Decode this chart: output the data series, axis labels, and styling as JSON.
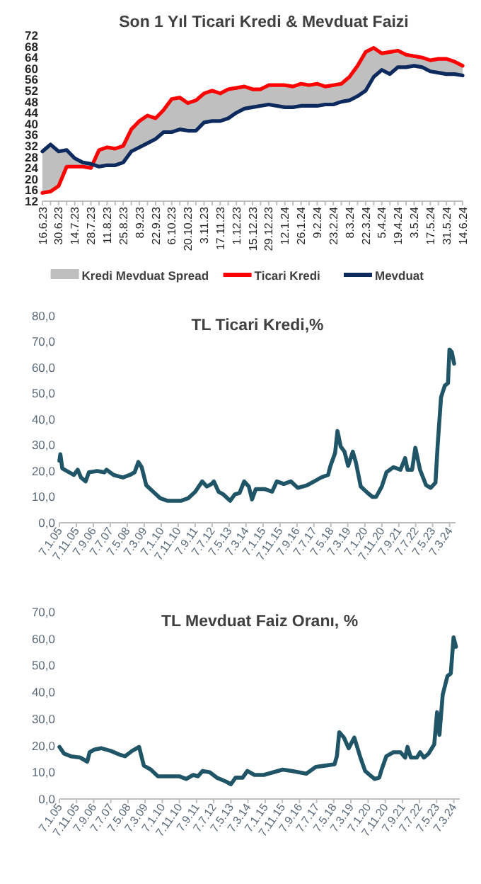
{
  "chart_data": [
    {
      "type": "line",
      "title": "Son 1 Yıl Ticari Kredi & Mevduat Faizi",
      "categories": [
        "16.6.23",
        null,
        "30.6.23",
        null,
        "14.7.23",
        null,
        "28.7.23",
        null,
        "11.8.23",
        null,
        "25.8.23",
        null,
        "8.9.23",
        null,
        "22.9.23",
        null,
        "6.10.23",
        null,
        "20.10.23",
        null,
        "3.11.23",
        null,
        "17.11.23",
        null,
        "1.12.23",
        null,
        "15.12.23",
        null,
        "29.12.23",
        null,
        "12.1.24",
        null,
        "26.1.24",
        null,
        "9.2.24",
        null,
        "23.2.24",
        null,
        "8.3.24",
        null,
        "22.3.24",
        null,
        "5.4.24",
        null,
        "19.4.24",
        null,
        "3.5.24",
        null,
        "17.5.24",
        null,
        "31.5.24",
        null,
        "14.6.24"
      ],
      "ylim": [
        12,
        72
      ],
      "yticks": [
        12,
        16,
        20,
        24,
        28,
        32,
        36,
        40,
        44,
        48,
        52,
        56,
        60,
        64,
        68,
        72
      ],
      "legend": "bottom",
      "series": [
        {
          "name": "Kredi Mevduat Spread",
          "type": "area",
          "color": "#bfbfbf",
          "values": [
            null,
            null,
            null,
            null,
            null,
            null,
            null,
            null,
            null,
            null,
            null,
            null,
            null,
            null,
            null,
            null,
            null,
            null,
            null,
            null,
            null,
            null,
            null,
            null,
            null,
            null,
            null,
            null,
            null,
            null,
            null,
            null,
            null,
            null,
            null,
            null,
            null,
            null,
            null,
            null,
            null,
            null,
            null,
            null,
            null,
            null,
            null,
            null,
            null,
            null,
            null,
            null,
            null
          ],
          "lower": [
            30,
            32.5,
            30,
            30.5,
            27.5,
            26,
            25.5,
            24.5,
            25,
            25,
            26,
            30,
            31.5,
            33,
            34.5,
            37,
            37,
            38,
            37.5,
            37.5,
            40.5,
            41,
            41,
            42,
            44,
            45.5,
            46,
            46.5,
            47,
            46.5,
            46,
            46,
            46.5,
            46.5,
            46.5,
            47,
            47,
            48,
            48.5,
            50,
            52,
            57,
            59.5,
            58,
            60.5,
            60.5,
            61,
            60.5,
            59,
            58.5,
            58,
            58,
            57.5
          ],
          "upper": [
            15,
            15.5,
            17.5,
            24.5,
            24.5,
            24.5,
            24,
            30.5,
            31.5,
            31,
            32,
            38,
            41,
            43,
            42,
            45,
            49,
            49.5,
            47.5,
            48.5,
            51,
            52,
            51,
            52.5,
            53,
            53.5,
            52.5,
            52.5,
            54,
            54,
            54,
            53.5,
            54.5,
            54,
            54.5,
            53.5,
            54,
            54.5,
            57,
            61,
            66,
            67.5,
            65.5,
            66,
            66.5,
            65,
            64.5,
            64,
            63,
            63.5,
            63.5,
            62.5,
            61
          ]
        },
        {
          "name": "Ticari Kredi",
          "color": "#ff0000",
          "values": [
            15,
            15.5,
            17.5,
            24.5,
            24.5,
            24.5,
            24,
            30.5,
            31.5,
            31,
            32,
            38,
            41,
            43,
            42,
            45,
            49,
            49.5,
            47.5,
            48.5,
            51,
            52,
            51,
            52.5,
            53,
            53.5,
            52.5,
            52.5,
            54,
            54,
            54,
            53.5,
            54.5,
            54,
            54.5,
            53.5,
            54,
            54.5,
            57,
            61,
            66,
            67.5,
            65.5,
            66,
            66.5,
            65,
            64.5,
            64,
            63,
            63.5,
            63.5,
            62.5,
            61
          ]
        },
        {
          "name": "Mevduat",
          "color": "#0d2a5e",
          "values": [
            30,
            32.5,
            30,
            30.5,
            27.5,
            26,
            25.5,
            24.5,
            25,
            25,
            26,
            30,
            31.5,
            33,
            34.5,
            37,
            37,
            38,
            37.5,
            37.5,
            40.5,
            41,
            41,
            42,
            44,
            45.5,
            46,
            46.5,
            47,
            46.5,
            46,
            46,
            46.5,
            46.5,
            46.5,
            47,
            47,
            48,
            48.5,
            50,
            52,
            57,
            59.5,
            58,
            60.5,
            60.5,
            61,
            60.5,
            59,
            58.5,
            58,
            58,
            57.5
          ]
        }
      ]
    },
    {
      "type": "line",
      "title": "TL Ticari Kredi,%",
      "xlim": [
        "2005-01-07",
        "2024-06-21"
      ],
      "xticks": [
        {
          "value": "2005-01-07",
          "label": "7.1.05"
        },
        {
          "value": "2005-11-07",
          "label": "7.11.05"
        },
        {
          "value": "2006-09-07",
          "label": "7.9.06"
        },
        {
          "value": "2007-07-07",
          "label": "7.7.07"
        },
        {
          "value": "2008-05-07",
          "label": "7.5.08"
        },
        {
          "value": "2009-03-07",
          "label": "7.3.09"
        },
        {
          "value": "2010-01-07",
          "label": "7.1.10"
        },
        {
          "value": "2010-11-07",
          "label": "7.11.10"
        },
        {
          "value": "2011-09-07",
          "label": "7.9.11"
        },
        {
          "value": "2012-07-07",
          "label": "7.7.12"
        },
        {
          "value": "2013-05-07",
          "label": "7.5.13"
        },
        {
          "value": "2014-03-07",
          "label": "7.3.14"
        },
        {
          "value": "2015-01-07",
          "label": "7.1.15"
        },
        {
          "value": "2015-11-07",
          "label": "7.11.15"
        },
        {
          "value": "2016-09-07",
          "label": "7.9.16"
        },
        {
          "value": "2017-07-07",
          "label": "7.7.17"
        },
        {
          "value": "2018-05-07",
          "label": "7.5.18"
        },
        {
          "value": "2019-03-07",
          "label": "7.3.19"
        },
        {
          "value": "2020-01-07",
          "label": "7.1.20"
        },
        {
          "value": "2020-11-07",
          "label": "7.11.20"
        },
        {
          "value": "2021-09-07",
          "label": "7.9.21"
        },
        {
          "value": "2022-07-07",
          "label": "7.7.22"
        },
        {
          "value": "2023-05-07",
          "label": "7.5.23"
        },
        {
          "value": "2024-03-07",
          "label": "7.3.24"
        }
      ],
      "ylim": [
        0,
        80
      ],
      "yticks": [
        {
          "value": 0,
          "label": "0,0"
        },
        {
          "value": 10,
          "label": "10,0"
        },
        {
          "value": 20,
          "label": "20,0"
        },
        {
          "value": 30,
          "label": "30,0"
        },
        {
          "value": 40,
          "label": "40,0"
        },
        {
          "value": 50,
          "label": "50,0"
        },
        {
          "value": 60,
          "label": "60,0"
        },
        {
          "value": 70,
          "label": "70,0"
        },
        {
          "value": 80,
          "label": "80,0"
        }
      ],
      "series": [
        {
          "color": "#1f5566",
          "x": [
            "2005-01-07",
            "2005-01-24",
            "2005-02-28",
            "2005-07-03",
            "2005-09-25",
            "2005-12-01",
            "2006-01-29",
            "2006-04-22",
            "2006-06-20",
            "2006-11-17",
            "2007-03-22",
            "2007-05-03",
            "2007-09-06",
            "2008-02-20",
            "2008-06-25",
            "2008-09-17",
            "2008-11-23",
            "2009-01-21",
            "2009-04-14",
            "2009-08-17",
            "2009-12-20",
            "2010-04-24",
            "2011-01-01",
            "2011-05-06",
            "2011-09-09",
            "2012-01-12",
            "2012-04-05",
            "2012-06-28",
            "2012-08-08",
            "2012-10-31",
            "2013-01-23",
            "2013-05-28",
            "2013-08-20",
            "2013-11-12",
            "2014-02-03",
            "2014-04-27",
            "2014-06-24",
            "2014-08-30",
            "2015-02-14",
            "2015-06-19",
            "2015-09-11",
            "2016-01-15",
            "2016-05-20",
            "2016-09-22",
            "2017-03-08",
            "2017-07-12",
            "2017-11-14",
            "2018-03-19",
            "2018-04-30",
            "2018-07-23",
            "2018-09-03",
            "2018-10-31",
            "2019-01-07",
            "2019-03-14",
            "2019-06-06",
            "2019-08-03",
            "2019-10-26",
            "2020-02-28",
            "2020-05-22",
            "2020-07-28",
            "2020-11-06",
            "2021-01-29",
            "2021-06-04",
            "2021-10-07",
            "2021-12-30",
            "2022-02-10",
            "2022-05-04",
            "2022-07-01",
            "2022-09-23",
            "2023-01-10",
            "2023-04-04",
            "2023-06-27",
            "2023-08-07",
            "2023-10-05",
            "2023-12-11",
            "2024-02-07",
            "2024-03-04",
            "2024-04-15",
            "2024-05-27"
          ],
          "values": [
            24,
            26.5,
            21,
            19.5,
            18.5,
            20.5,
            17.5,
            16,
            19.5,
            20,
            19.5,
            20.5,
            18.5,
            17.5,
            18.5,
            19.5,
            23.5,
            21.5,
            14.5,
            12,
            9.5,
            8.5,
            8.5,
            9.5,
            12,
            16,
            14,
            15,
            16,
            12,
            11,
            8.5,
            11,
            11.5,
            16,
            14,
            9,
            13,
            13,
            12,
            16,
            15,
            16,
            13.5,
            14.5,
            16,
            17.5,
            18.5,
            22,
            27,
            35.5,
            29.5,
            27.5,
            22,
            27.5,
            23,
            14,
            11.5,
            10,
            10,
            14,
            19.5,
            21.5,
            20.5,
            25,
            20.5,
            20.5,
            29,
            20.5,
            14.5,
            13.5,
            15.5,
            30.5,
            48.5,
            53,
            54,
            67,
            66,
            61.5
          ]
        }
      ]
    },
    {
      "type": "line",
      "title": "TL  Mevduat Faiz Oranı, %",
      "xlim": [
        "2005-01-07",
        "2024-06-21"
      ],
      "xticks": [
        {
          "value": "2005-01-07",
          "label": "7.1.05"
        },
        {
          "value": "2005-11-07",
          "label": "7.11.05"
        },
        {
          "value": "2006-09-07",
          "label": "7.9.06"
        },
        {
          "value": "2007-07-07",
          "label": "7.7.07"
        },
        {
          "value": "2008-05-07",
          "label": "7.5.08"
        },
        {
          "value": "2009-03-07",
          "label": "7.3.09"
        },
        {
          "value": "2010-01-07",
          "label": "7.1.10"
        },
        {
          "value": "2010-11-07",
          "label": "7.11.10"
        },
        {
          "value": "2011-09-07",
          "label": "7.9.11"
        },
        {
          "value": "2012-07-07",
          "label": "7.7.12"
        },
        {
          "value": "2013-05-07",
          "label": "7.5.13"
        },
        {
          "value": "2014-03-07",
          "label": "7.3.14"
        },
        {
          "value": "2015-01-07",
          "label": "7.1.15"
        },
        {
          "value": "2015-11-07",
          "label": "7.11.15"
        },
        {
          "value": "2016-09-07",
          "label": "7.9.16"
        },
        {
          "value": "2017-07-07",
          "label": "7.7.17"
        },
        {
          "value": "2018-05-07",
          "label": "7.5.18"
        },
        {
          "value": "2019-03-07",
          "label": "7.3.19"
        },
        {
          "value": "2020-01-07",
          "label": "7.1.20"
        },
        {
          "value": "2020-11-07",
          "label": "7.11.20"
        },
        {
          "value": "2021-09-07",
          "label": "7.9.21"
        },
        {
          "value": "2022-07-07",
          "label": "7.7.22"
        },
        {
          "value": "2023-05-07",
          "label": "7.5.23"
        },
        {
          "value": "2024-03-07",
          "label": "7.3.24"
        }
      ],
      "ylim": [
        0,
        70
      ],
      "yticks": [
        {
          "value": 0,
          "label": "0,0"
        },
        {
          "value": 10,
          "label": "10,0"
        },
        {
          "value": 20,
          "label": "20,0"
        },
        {
          "value": 30,
          "label": "30,0"
        },
        {
          "value": 40,
          "label": "40,0"
        },
        {
          "value": 50,
          "label": "50,0"
        },
        {
          "value": 60,
          "label": "60,0"
        },
        {
          "value": 70,
          "label": "70,0"
        }
      ],
      "series": [
        {
          "color": "#1f5566",
          "x": [
            "2005-01-07",
            "2005-03-30",
            "2005-07-28",
            "2006-01-11",
            "2006-05-16",
            "2006-06-27",
            "2006-09-19",
            "2007-01-22",
            "2007-07-08",
            "2007-12-23",
            "2008-03-16",
            "2008-07-19",
            "2008-11-21",
            "2009-02-13",
            "2009-06-18",
            "2009-10-21",
            "2010-05-19",
            "2010-11-02",
            "2011-03-06",
            "2011-07-10",
            "2011-10-02",
            "2011-12-24",
            "2012-04-27",
            "2012-08-30",
            "2013-02-13",
            "2013-05-08",
            "2013-07-30",
            "2013-12-02",
            "2014-02-24",
            "2014-06-30",
            "2014-12-14",
            "2015-05-30",
            "2015-11-14",
            "2016-04-29",
            "2017-01-06",
            "2017-06-21",
            "2017-12-05",
            "2018-05-21",
            "2018-07-02",
            "2018-08-13",
            "2018-11-04",
            "2019-01-27",
            "2019-05-07",
            "2019-08-24",
            "2019-11-15",
            "2020-02-06",
            "2020-04-30",
            "2020-07-23",
            "2020-09-03",
            "2020-11-26",
            "2021-03-31",
            "2021-08-03",
            "2021-10-26",
            "2021-12-07",
            "2022-02-03",
            "2022-05-21",
            "2022-07-19",
            "2022-09-24",
            "2022-12-16",
            "2023-03-26",
            "2023-05-15",
            "2023-06-26",
            "2023-08-23",
            "2023-11-15",
            "2024-01-13",
            "2024-03-03",
            "2024-04-14"
          ],
          "values": [
            19.5,
            17,
            16,
            15.5,
            14,
            17.5,
            18.5,
            19,
            18,
            16.5,
            16,
            18,
            19.5,
            12.5,
            11,
            8.5,
            8.5,
            8.5,
            7.5,
            9,
            8.5,
            10.5,
            10,
            8,
            6.5,
            5.5,
            8,
            8,
            10.5,
            9,
            9,
            10,
            11,
            10.5,
            9.5,
            12,
            12.5,
            13,
            16,
            25,
            23,
            19,
            23,
            15.5,
            10.5,
            9,
            7.5,
            8,
            11,
            16,
            17.5,
            17.5,
            15.5,
            19.5,
            15.5,
            15.5,
            17.5,
            15.5,
            17,
            20.5,
            32.5,
            24,
            39,
            46,
            47,
            60.5,
            57
          ]
        }
      ]
    }
  ]
}
